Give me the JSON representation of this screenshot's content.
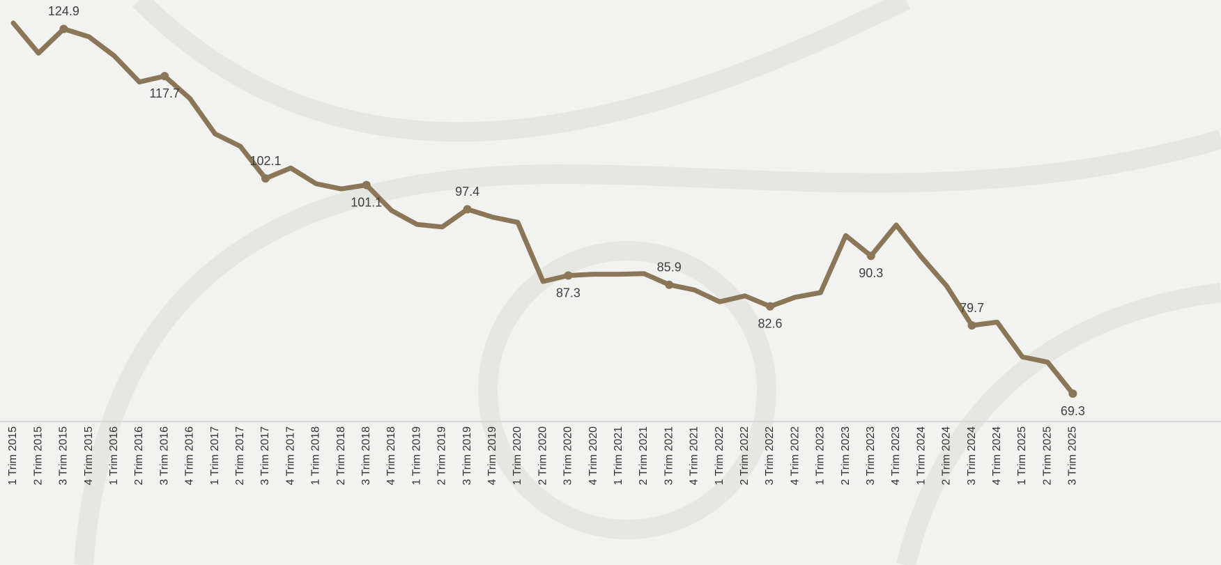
{
  "chart_data": {
    "type": "line",
    "categories": [
      "1 Trim 2015",
      "2 Trim 2015",
      "3 Trim 2015",
      "4 Trim 2015",
      "1 Trim 2016",
      "2 Trim 2016",
      "3 Trim 2016",
      "4 Trim 2016",
      "1 Trim 2017",
      "2 Trim 2017",
      "3 Trim 2017",
      "4 Trim 2017",
      "1 Trim 2018",
      "2 Trim 2018",
      "3 Trim 2018",
      "4 Trim 2018",
      "1 Trim 2019",
      "2 Trim 2019",
      "3 Trim 2019",
      "4 Trim 2019",
      "1 Trim 2020",
      "2 Trim 2020",
      "3 Trim 2020",
      "4 Trim 2020",
      "1 Trim 2021",
      "2 Trim 2021",
      "3 Trim 2021",
      "4 Trim 2021",
      "1 Trim 2022",
      "2 Trim 2022",
      "3 Trim 2022",
      "4 Trim 2022",
      "1 Trim 2023",
      "2 Trim 2023",
      "3 Trim 2023",
      "4 Trim 2023",
      "1 Trim 2024",
      "2 Trim 2024",
      "3 Trim 2024",
      "4 Trim 2024",
      "1 Trim 2025",
      "2 Trim 2025",
      "3 Trim 2025"
    ],
    "values": [
      125.8,
      121.2,
      124.9,
      123.7,
      120.8,
      116.8,
      117.7,
      114.3,
      108.9,
      107.0,
      102.1,
      103.7,
      101.3,
      100.5,
      101.1,
      97.2,
      95.1,
      94.7,
      97.4,
      96.2,
      95.4,
      86.4,
      87.3,
      87.5,
      87.5,
      87.6,
      85.9,
      85.1,
      83.3,
      84.2,
      82.6,
      84.0,
      84.7,
      93.4,
      90.3,
      95.0,
      90.1,
      85.7,
      79.7,
      80.2,
      74.9,
      74.1,
      69.3
    ],
    "value_labels": [
      null,
      null,
      "124.9",
      null,
      null,
      null,
      "117.7",
      null,
      null,
      null,
      "102.1",
      null,
      null,
      null,
      "101.1",
      null,
      null,
      null,
      "97.4",
      null,
      null,
      null,
      "87.3",
      null,
      null,
      null,
      "85.9",
      null,
      null,
      null,
      "82.6",
      null,
      null,
      null,
      "90.3",
      null,
      null,
      null,
      "79.7",
      null,
      null,
      null,
      "69.3"
    ],
    "color": "#8b7758"
  }
}
